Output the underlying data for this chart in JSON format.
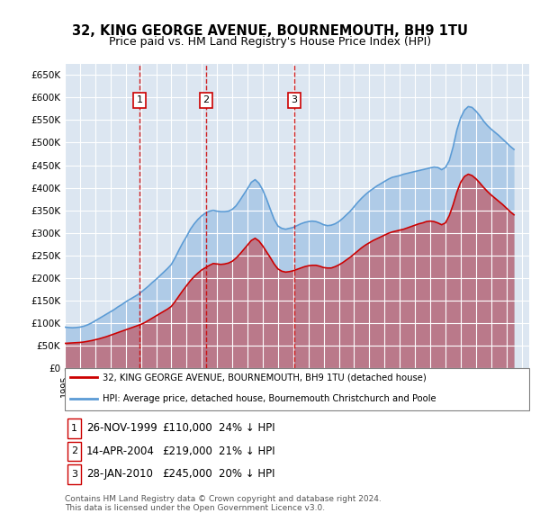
{
  "title": "32, KING GEORGE AVENUE, BOURNEMOUTH, BH9 1TU",
  "subtitle": "Price paid vs. HM Land Registry's House Price Index (HPI)",
  "ylabel": "",
  "ylim": [
    0,
    675000
  ],
  "yticks": [
    0,
    50000,
    100000,
    150000,
    200000,
    250000,
    300000,
    350000,
    400000,
    450000,
    500000,
    550000,
    600000,
    650000
  ],
  "xlim_start": 1995.0,
  "xlim_end": 2025.5,
  "bg_color": "#dce6f1",
  "plot_bg": "#dce6f1",
  "grid_color": "#ffffff",
  "sale_color": "#cc0000",
  "hpi_color": "#5b9bd5",
  "transaction_dates": [
    1999.9,
    2004.28,
    2010.07
  ],
  "transaction_prices": [
    110000,
    219000,
    245000
  ],
  "transaction_labels": [
    "1",
    "2",
    "3"
  ],
  "legend_sale": "32, KING GEORGE AVENUE, BOURNEMOUTH, BH9 1TU (detached house)",
  "legend_hpi": "HPI: Average price, detached house, Bournemouth Christchurch and Poole",
  "table_rows": [
    [
      "1",
      "26-NOV-1999",
      "£110,000",
      "24% ↓ HPI"
    ],
    [
      "2",
      "14-APR-2004",
      "£219,000",
      "21% ↓ HPI"
    ],
    [
      "3",
      "28-JAN-2010",
      "£245,000",
      "20% ↓ HPI"
    ]
  ],
  "footer": "Contains HM Land Registry data © Crown copyright and database right 2024.\nThis data is licensed under the Open Government Licence v3.0.",
  "hpi_x": [
    1995.0,
    1995.25,
    1995.5,
    1995.75,
    1996.0,
    1996.25,
    1996.5,
    1996.75,
    1997.0,
    1997.25,
    1997.5,
    1997.75,
    1998.0,
    1998.25,
    1998.5,
    1998.75,
    1999.0,
    1999.25,
    1999.5,
    1999.75,
    2000.0,
    2000.25,
    2000.5,
    2000.75,
    2001.0,
    2001.25,
    2001.5,
    2001.75,
    2002.0,
    2002.25,
    2002.5,
    2002.75,
    2003.0,
    2003.25,
    2003.5,
    2003.75,
    2004.0,
    2004.25,
    2004.5,
    2004.75,
    2005.0,
    2005.25,
    2005.5,
    2005.75,
    2006.0,
    2006.25,
    2006.5,
    2006.75,
    2007.0,
    2007.25,
    2007.5,
    2007.75,
    2008.0,
    2008.25,
    2008.5,
    2008.75,
    2009.0,
    2009.25,
    2009.5,
    2009.75,
    2010.0,
    2010.25,
    2010.5,
    2010.75,
    2011.0,
    2011.25,
    2011.5,
    2011.75,
    2012.0,
    2012.25,
    2012.5,
    2012.75,
    2013.0,
    2013.25,
    2013.5,
    2013.75,
    2014.0,
    2014.25,
    2014.5,
    2014.75,
    2015.0,
    2015.25,
    2015.5,
    2015.75,
    2016.0,
    2016.25,
    2016.5,
    2016.75,
    2017.0,
    2017.25,
    2017.5,
    2017.75,
    2018.0,
    2018.25,
    2018.5,
    2018.75,
    2019.0,
    2019.25,
    2019.5,
    2019.75,
    2020.0,
    2020.25,
    2020.5,
    2020.75,
    2021.0,
    2021.25,
    2021.5,
    2021.75,
    2022.0,
    2022.25,
    2022.5,
    2022.75,
    2023.0,
    2023.25,
    2023.5,
    2023.75,
    2024.0,
    2024.25,
    2024.5
  ],
  "hpi_y": [
    91000,
    90000,
    89500,
    90000,
    91000,
    93000,
    96000,
    100000,
    105000,
    110000,
    115000,
    120000,
    125000,
    130000,
    136000,
    141000,
    147000,
    152000,
    157000,
    162000,
    168000,
    175000,
    182000,
    190000,
    197000,
    205000,
    213000,
    221000,
    230000,
    245000,
    262000,
    278000,
    292000,
    308000,
    320000,
    330000,
    338000,
    344000,
    348000,
    350000,
    348000,
    347000,
    347000,
    348000,
    352000,
    360000,
    372000,
    385000,
    398000,
    412000,
    418000,
    410000,
    395000,
    375000,
    352000,
    330000,
    315000,
    310000,
    308000,
    310000,
    312000,
    316000,
    320000,
    323000,
    325000,
    326000,
    325000,
    322000,
    318000,
    316000,
    317000,
    320000,
    325000,
    332000,
    340000,
    348000,
    358000,
    368000,
    377000,
    385000,
    392000,
    398000,
    404000,
    409000,
    414000,
    419000,
    423000,
    425000,
    427000,
    430000,
    432000,
    434000,
    436000,
    438000,
    440000,
    442000,
    444000,
    446000,
    445000,
    440000,
    445000,
    460000,
    490000,
    528000,
    555000,
    572000,
    580000,
    578000,
    570000,
    560000,
    548000,
    538000,
    530000,
    523000,
    516000,
    508000,
    500000,
    492000,
    485000
  ],
  "sale_x": [
    1995.0,
    1995.25,
    1995.5,
    1995.75,
    1996.0,
    1996.25,
    1996.5,
    1996.75,
    1997.0,
    1997.25,
    1997.5,
    1997.75,
    1998.0,
    1998.25,
    1998.5,
    1998.75,
    1999.0,
    1999.25,
    1999.5,
    1999.75,
    2000.0,
    2000.25,
    2000.5,
    2000.75,
    2001.0,
    2001.25,
    2001.5,
    2001.75,
    2002.0,
    2002.25,
    2002.5,
    2002.75,
    2003.0,
    2003.25,
    2003.5,
    2003.75,
    2004.0,
    2004.25,
    2004.5,
    2004.75,
    2005.0,
    2005.25,
    2005.5,
    2005.75,
    2006.0,
    2006.25,
    2006.5,
    2006.75,
    2007.0,
    2007.25,
    2007.5,
    2007.75,
    2008.0,
    2008.25,
    2008.5,
    2008.75,
    2009.0,
    2009.25,
    2009.5,
    2009.75,
    2010.0,
    2010.25,
    2010.5,
    2010.75,
    2011.0,
    2011.25,
    2011.5,
    2011.75,
    2012.0,
    2012.25,
    2012.5,
    2012.75,
    2013.0,
    2013.25,
    2013.5,
    2013.75,
    2014.0,
    2014.25,
    2014.5,
    2014.75,
    2015.0,
    2015.25,
    2015.5,
    2015.75,
    2016.0,
    2016.25,
    2016.5,
    2016.75,
    2017.0,
    2017.25,
    2017.5,
    2017.75,
    2018.0,
    2018.25,
    2018.5,
    2018.75,
    2019.0,
    2019.25,
    2019.5,
    2019.75,
    2020.0,
    2020.25,
    2020.5,
    2020.75,
    2021.0,
    2021.25,
    2021.5,
    2021.75,
    2022.0,
    2022.25,
    2022.5,
    2022.75,
    2023.0,
    2023.25,
    2023.5,
    2023.75,
    2024.0,
    2024.25,
    2024.5
  ],
  "sale_y": [
    55000,
    55500,
    56000,
    56500,
    57000,
    58000,
    59500,
    61000,
    63000,
    65000,
    67500,
    70000,
    73000,
    76000,
    79000,
    82000,
    85000,
    88000,
    91000,
    94000,
    97000,
    101000,
    106000,
    111000,
    116000,
    121000,
    126000,
    131000,
    137000,
    148000,
    160000,
    172000,
    183000,
    194000,
    203000,
    211000,
    218000,
    223000,
    228000,
    232000,
    231000,
    230000,
    231000,
    233000,
    237000,
    244000,
    253000,
    263000,
    273000,
    283000,
    288000,
    282000,
    271000,
    258000,
    245000,
    231000,
    220000,
    215000,
    213000,
    214000,
    216000,
    219000,
    222000,
    225000,
    227000,
    228000,
    228000,
    226000,
    223000,
    222000,
    222000,
    225000,
    229000,
    234000,
    240000,
    246000,
    253000,
    260000,
    267000,
    273000,
    278000,
    283000,
    287000,
    291000,
    295000,
    299000,
    302000,
    304000,
    306000,
    308000,
    311000,
    314000,
    317000,
    320000,
    322000,
    325000,
    326000,
    325000,
    322000,
    318000,
    322000,
    338000,
    362000,
    390000,
    412000,
    425000,
    430000,
    427000,
    420000,
    411000,
    401000,
    392000,
    384000,
    377000,
    370000,
    363000,
    355000,
    347000,
    340000
  ]
}
